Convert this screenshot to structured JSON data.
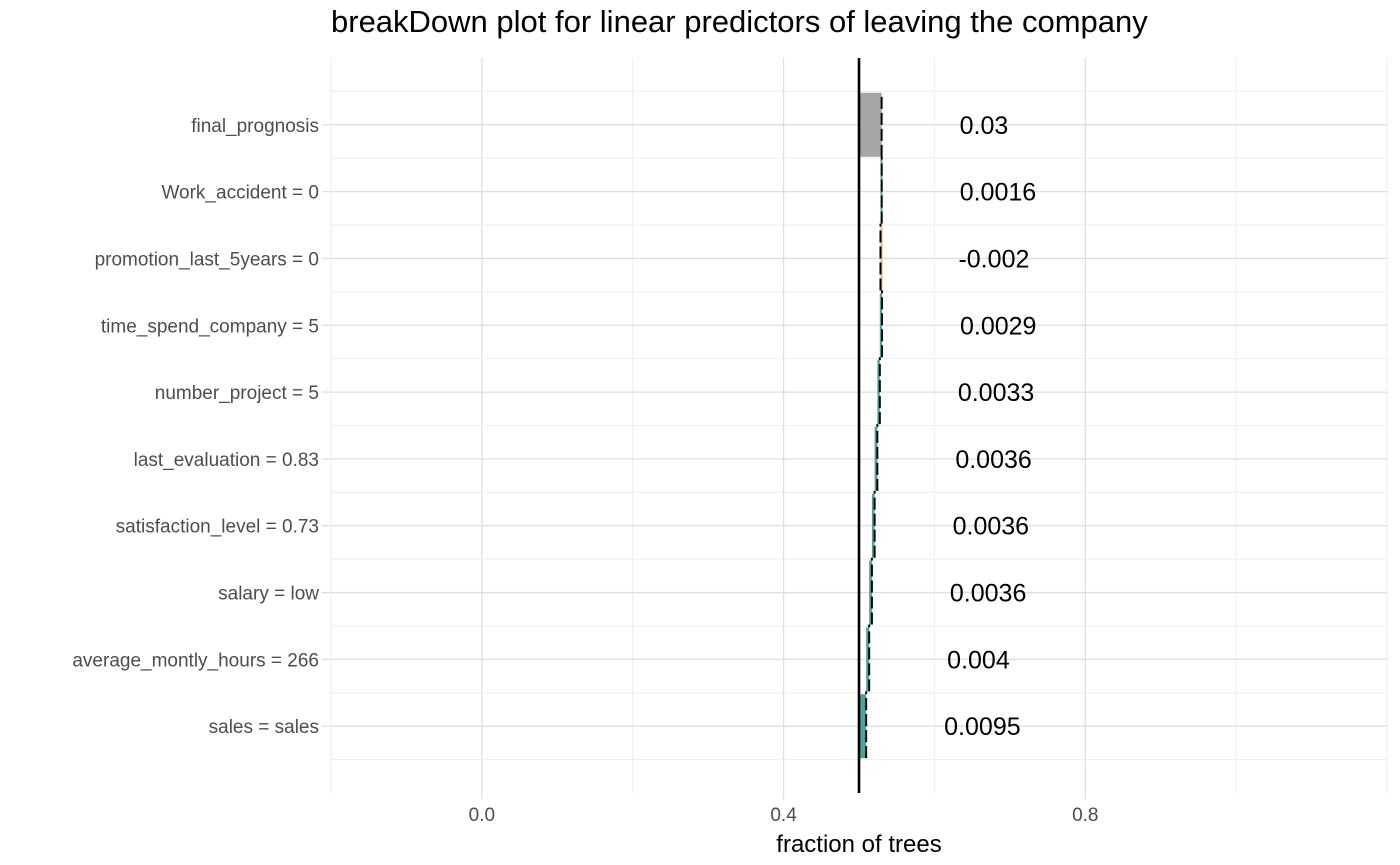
{
  "chart_data": {
    "type": "bar",
    "subtype": "waterfall-breakdown",
    "orientation": "horizontal",
    "title": "breakDown plot for linear predictors of leaving the company",
    "xlabel": "fraction of trees",
    "ylabel": "",
    "xlim": [
      -0.2,
      1.2
    ],
    "x_ticks": [
      0.0,
      0.4,
      0.8
    ],
    "x_tick_labels": [
      "0.0",
      "0.4",
      "0.8"
    ],
    "grid": true,
    "baseline": 0.5,
    "rows": [
      {
        "label": "sales = sales",
        "contribution": 0.0095,
        "label_text": "0.0095",
        "start": 0.5,
        "end": 0.5095,
        "kind": "positive"
      },
      {
        "label": "average_montly_hours = 266",
        "contribution": 0.004,
        "label_text": "0.004",
        "start": 0.5095,
        "end": 0.5135,
        "kind": "positive"
      },
      {
        "label": "salary = low",
        "contribution": 0.0036,
        "label_text": "0.0036",
        "start": 0.5135,
        "end": 0.5171,
        "kind": "positive"
      },
      {
        "label": "satisfaction_level = 0.73",
        "contribution": 0.0036,
        "label_text": "0.0036",
        "start": 0.5171,
        "end": 0.5207,
        "kind": "positive"
      },
      {
        "label": "last_evaluation = 0.83",
        "contribution": 0.0036,
        "label_text": "0.0036",
        "start": 0.5207,
        "end": 0.5243,
        "kind": "positive"
      },
      {
        "label": "number_project = 5",
        "contribution": 0.0033,
        "label_text": "0.0033",
        "start": 0.5243,
        "end": 0.5276,
        "kind": "positive"
      },
      {
        "label": "time_spend_company = 5",
        "contribution": 0.0029,
        "label_text": "0.0029",
        "start": 0.5276,
        "end": 0.5305,
        "kind": "positive"
      },
      {
        "label": "promotion_last_5years = 0",
        "contribution": -0.002,
        "label_text": "-0.002",
        "start": 0.5305,
        "end": 0.5285,
        "kind": "negative"
      },
      {
        "label": "Work_accident = 0",
        "contribution": 0.0016,
        "label_text": "0.0016",
        "start": 0.5285,
        "end": 0.5301,
        "kind": "positive"
      },
      {
        "label": "final_prognosis",
        "contribution": 0.03,
        "label_text": "0.03",
        "start": 0.5,
        "end": 0.53,
        "kind": "total"
      }
    ],
    "colors": {
      "positive": "#4DA39B",
      "negative": "#E8B76A",
      "total": "#A6A6A6",
      "baseline": "#000000",
      "grid_major": "#DEDEDE",
      "grid_minor": "#EEEEEE",
      "axis_text": "#4D4D4D"
    }
  }
}
